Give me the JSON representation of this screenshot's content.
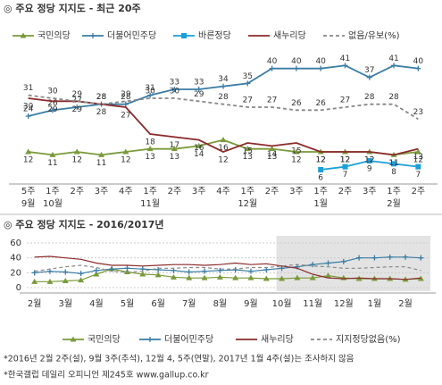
{
  "charts": [
    {
      "type": "line",
      "title": "◎ 주요 정당 지지도 - 최근 20주",
      "categories": [
        "5주",
        "1주",
        "2주",
        "3주",
        "4주",
        "1주",
        "2주",
        "3주",
        "4주",
        "1주",
        "2주",
        "3주",
        "1주",
        "2주",
        "3주",
        "1주",
        "2주"
      ],
      "months": [
        "9월",
        "10월",
        null,
        null,
        null,
        "11월",
        null,
        null,
        null,
        "12월",
        null,
        null,
        "1월",
        null,
        null,
        "2월",
        null
      ],
      "ylim": [
        3,
        45
      ],
      "data_labels": true,
      "series": [
        {
          "name": "국민의당",
          "color": "#7a9a3a",
          "marker": "triangle",
          "values": [
            12,
            11,
            12,
            11,
            12,
            13,
            13,
            14,
            16,
            13,
            13,
            12,
            12,
            12,
            12,
            11,
            12
          ]
        },
        {
          "name": "더불어민주당",
          "color": "#3a7ca5",
          "marker": "plus",
          "values": [
            24,
            26,
            27,
            28,
            28,
            31,
            33,
            33,
            34,
            35,
            40,
            40,
            40,
            41,
            37,
            41,
            40
          ]
        },
        {
          "name": "바른정당",
          "color": "#1aa0d8",
          "marker": "square",
          "values": [
            null,
            null,
            null,
            null,
            null,
            null,
            null,
            null,
            null,
            null,
            null,
            null,
            6,
            7,
            9,
            8,
            7
          ]
        },
        {
          "name": "새누리당",
          "color": "#8b2a2a",
          "marker": "none",
          "values": [
            30,
            29,
            29,
            28,
            27,
            18,
            17,
            16,
            12,
            15,
            14,
            15,
            12,
            12,
            12,
            11,
            13
          ]
        },
        {
          "name": "없음/유보(%)",
          "color": "#888888",
          "marker": "none",
          "dash": true,
          "values": [
            31,
            30,
            29,
            28,
            29,
            30,
            30,
            29,
            28,
            27,
            27,
            26,
            26,
            27,
            28,
            28,
            23
          ]
        }
      ]
    },
    {
      "type": "line",
      "title": "◎ 주요 정당 지지도 - 2016/2017년",
      "categories": [
        "2월",
        null,
        "3월",
        null,
        "4월",
        null,
        "5월",
        null,
        "6월",
        null,
        "7월",
        null,
        "8월",
        null,
        "9월",
        null,
        "10월",
        null,
        "11월",
        null,
        "12월",
        null,
        "1월",
        null,
        "2월",
        null
      ],
      "ylim": [
        0,
        60
      ],
      "yticks": [
        0,
        20,
        40,
        60
      ],
      "grid": true,
      "shade_from": "10월",
      "series": [
        {
          "name": "국민의당",
          "color": "#7a9a3a",
          "marker": "triangle",
          "values": [
            8,
            8,
            9,
            10,
            18,
            25,
            21,
            18,
            17,
            14,
            13,
            13,
            14,
            13,
            13,
            12,
            12,
            13,
            13,
            16,
            13,
            12,
            12,
            12,
            11,
            12
          ]
        },
        {
          "name": "더불어민주당",
          "color": "#3a7ca5",
          "marker": "plus",
          "values": [
            20,
            22,
            21,
            19,
            23,
            25,
            26,
            25,
            24,
            23,
            21,
            22,
            23,
            24,
            22,
            24,
            26,
            28,
            31,
            33,
            35,
            40,
            40,
            41,
            41,
            40
          ]
        },
        {
          "name": "새누리당",
          "color": "#8b2a2a",
          "marker": "none",
          "values": [
            41,
            42,
            40,
            38,
            33,
            30,
            30,
            29,
            30,
            31,
            31,
            30,
            31,
            33,
            31,
            32,
            29,
            26,
            18,
            13,
            12,
            13,
            12,
            12,
            11,
            13
          ]
        },
        {
          "name": "지지정당없음(%)",
          "color": "#888888",
          "marker": "none",
          "dash": true,
          "values": [
            22,
            25,
            28,
            30,
            27,
            22,
            21,
            22,
            26,
            26,
            27,
            27,
            25,
            25,
            27,
            27,
            29,
            31,
            29,
            28,
            26,
            26,
            27,
            28,
            28,
            23
          ]
        }
      ]
    }
  ],
  "footnotes": [
    "*2016년 2월 2주(설), 9월 3주(추석), 12월 4, 5주(연말), 2017년 1월 4주(설)는 조사하지 않음",
    "*한국갤럽 데일리 오피니언 제245호 www.gallup.co.kr"
  ]
}
